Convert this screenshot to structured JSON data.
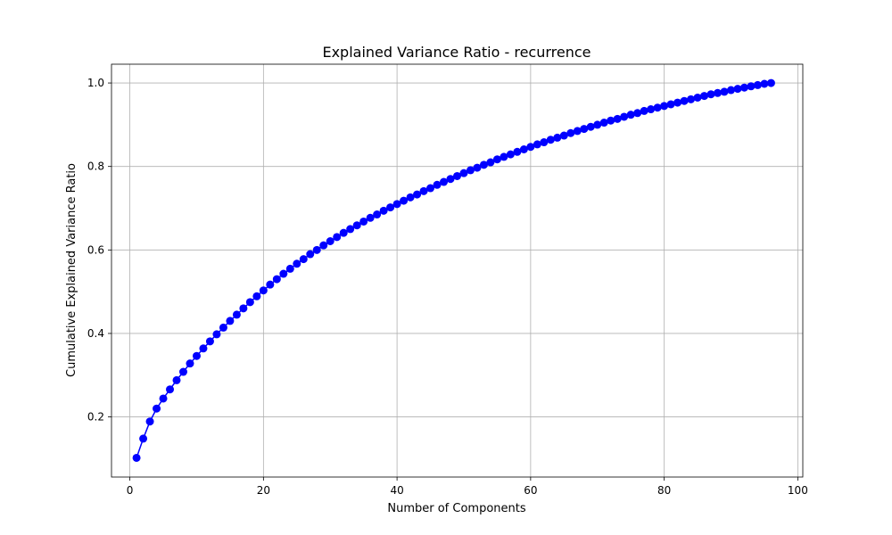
{
  "chart_data": {
    "type": "line",
    "title": "Explained Variance Ratio - recurrence",
    "xlabel": "Number of Components",
    "ylabel": "Cumulative Explained Variance Ratio",
    "xlim": [
      -2.75,
      100.75
    ],
    "ylim": [
      0.056,
      1.045
    ],
    "xticks": [
      0,
      20,
      40,
      60,
      80,
      100
    ],
    "yticks": [
      0.2,
      0.4,
      0.6,
      0.8,
      1.0
    ],
    "xtick_labels": [
      "0",
      "20",
      "40",
      "60",
      "80",
      "100"
    ],
    "ytick_labels": [
      "0.2",
      "0.4",
      "0.6",
      "0.8",
      "1.0"
    ],
    "grid": true,
    "marker": "circle",
    "line_color": "#0000ff",
    "marker_color": "#0000ff",
    "series": [
      {
        "x": [
          1,
          2,
          3,
          4,
          5,
          6,
          7,
          8,
          9,
          10,
          11,
          12,
          13,
          14,
          15,
          16,
          17,
          18,
          19,
          20,
          21,
          22,
          23,
          24,
          25,
          26,
          27,
          28,
          29,
          30,
          31,
          32,
          33,
          34,
          35,
          36,
          37,
          38,
          39,
          40,
          41,
          42,
          43,
          44,
          45,
          46,
          47,
          48,
          49,
          50,
          51,
          52,
          53,
          54,
          55,
          56,
          57,
          58,
          59,
          60,
          61,
          62,
          63,
          64,
          65,
          66,
          67,
          68,
          69,
          70,
          71,
          72,
          73,
          74,
          75,
          76,
          77,
          78,
          79,
          80,
          81,
          82,
          83,
          84,
          85,
          86,
          87,
          88,
          89,
          90,
          91,
          92,
          93,
          94,
          95,
          96
        ],
        "y": [
          0.102,
          0.148,
          0.189,
          0.22,
          0.244,
          0.266,
          0.288,
          0.308,
          0.328,
          0.346,
          0.364,
          0.381,
          0.398,
          0.414,
          0.43,
          0.445,
          0.46,
          0.475,
          0.489,
          0.503,
          0.517,
          0.53,
          0.543,
          0.555,
          0.567,
          0.578,
          0.59,
          0.6,
          0.611,
          0.621,
          0.631,
          0.641,
          0.65,
          0.659,
          0.668,
          0.677,
          0.685,
          0.694,
          0.702,
          0.71,
          0.718,
          0.726,
          0.733,
          0.741,
          0.748,
          0.756,
          0.763,
          0.77,
          0.777,
          0.784,
          0.791,
          0.797,
          0.804,
          0.81,
          0.817,
          0.823,
          0.829,
          0.835,
          0.841,
          0.847,
          0.853,
          0.858,
          0.864,
          0.869,
          0.874,
          0.88,
          0.885,
          0.89,
          0.895,
          0.9,
          0.905,
          0.91,
          0.914,
          0.919,
          0.924,
          0.928,
          0.933,
          0.937,
          0.941,
          0.945,
          0.949,
          0.953,
          0.957,
          0.961,
          0.965,
          0.969,
          0.973,
          0.976,
          0.979,
          0.983,
          0.986,
          0.989,
          0.992,
          0.995,
          0.998,
          1.0
        ]
      }
    ]
  }
}
